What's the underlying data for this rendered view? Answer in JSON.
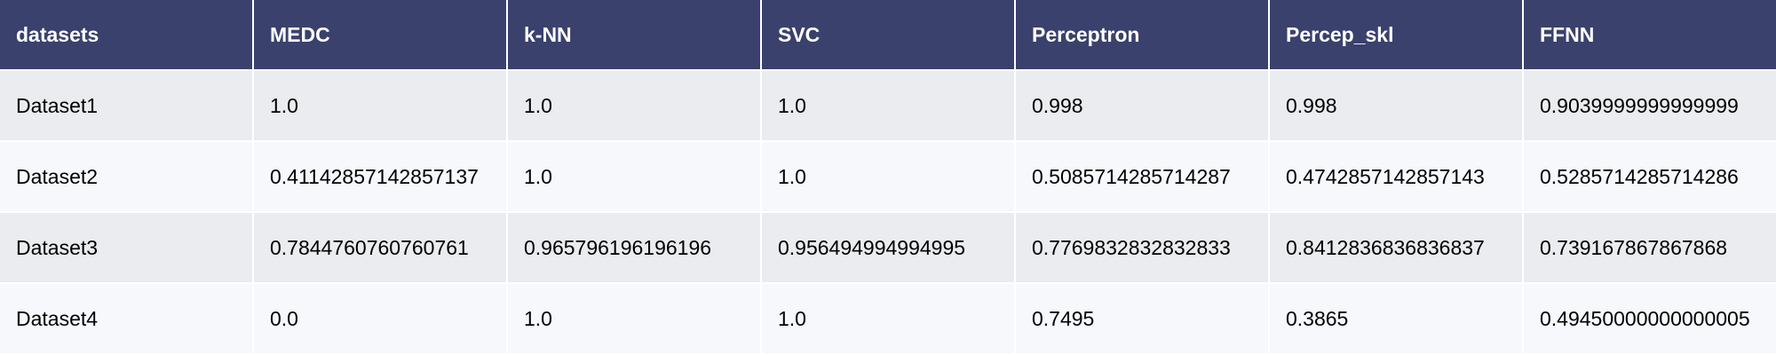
{
  "table": {
    "headers": [
      "datasets",
      "MEDC",
      "k-NN",
      "SVC",
      "Perceptron",
      "Percep_skl",
      "FFNN"
    ],
    "rows": [
      [
        "Dataset1",
        "1.0",
        "1.0",
        "1.0",
        "0.998",
        "0.998",
        "0.9039999999999999"
      ],
      [
        "Dataset2",
        "0.41142857142857137",
        "1.0",
        "1.0",
        "0.5085714285714287",
        "0.4742857142857143",
        "0.5285714285714286"
      ],
      [
        "Dataset3",
        "0.7844760760760761",
        "0.965796196196196",
        "0.956494994994995",
        "0.7769832832832833",
        "0.8412836836836837",
        "0.739167867867868"
      ],
      [
        "Dataset4",
        "0.0",
        "1.0",
        "1.0",
        "0.7495",
        "0.3865",
        "0.49450000000000005"
      ]
    ]
  },
  "colors": {
    "header_bg": "#3b416d",
    "header_text": "#ffffff",
    "row_odd_bg": "#ebecef",
    "row_even_bg": "#f7f8fc"
  }
}
